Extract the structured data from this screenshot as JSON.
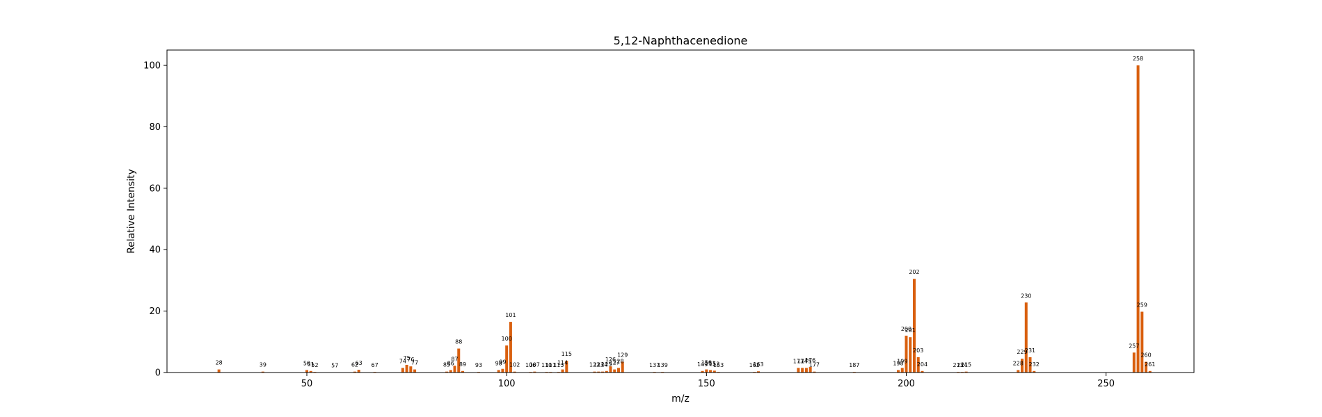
{
  "chart_data": {
    "type": "bar",
    "title": "5,12-Naphthacenedione",
    "xlabel": "m/z",
    "ylabel": "Relative Intensity",
    "xlim": [
      15,
      272
    ],
    "ylim": [
      0,
      105
    ],
    "xticks": [
      50,
      100,
      150,
      200,
      250
    ],
    "yticks": [
      0,
      20,
      40,
      60,
      80,
      100
    ],
    "bar_color": "#d95f0e",
    "grid": false,
    "legend": "none",
    "peaks": [
      {
        "x": 28,
        "y": 1.0
      },
      {
        "x": 39,
        "y": 0.3
      },
      {
        "x": 50,
        "y": 0.8
      },
      {
        "x": 51,
        "y": 0.5
      },
      {
        "x": 52,
        "y": 0.2
      },
      {
        "x": 57,
        "y": 0.1
      },
      {
        "x": 62,
        "y": 0.3
      },
      {
        "x": 63,
        "y": 0.9
      },
      {
        "x": 67,
        "y": 0.2
      },
      {
        "x": 74,
        "y": 1.5
      },
      {
        "x": 75,
        "y": 2.5
      },
      {
        "x": 76,
        "y": 2.0
      },
      {
        "x": 77,
        "y": 1.0
      },
      {
        "x": 85,
        "y": 0.3
      },
      {
        "x": 86,
        "y": 0.8
      },
      {
        "x": 87,
        "y": 2.2
      },
      {
        "x": 88,
        "y": 7.8
      },
      {
        "x": 89,
        "y": 0.5
      },
      {
        "x": 93,
        "y": 0.2
      },
      {
        "x": 98,
        "y": 0.8
      },
      {
        "x": 99,
        "y": 1.2
      },
      {
        "x": 100,
        "y": 8.8
      },
      {
        "x": 101,
        "y": 16.5
      },
      {
        "x": 102,
        "y": 0.3
      },
      {
        "x": 106,
        "y": 0.2
      },
      {
        "x": 107,
        "y": 0.3
      },
      {
        "x": 110,
        "y": 0.2
      },
      {
        "x": 111,
        "y": 0.2
      },
      {
        "x": 113,
        "y": 0.2
      },
      {
        "x": 114,
        "y": 1.0
      },
      {
        "x": 115,
        "y": 3.8
      },
      {
        "x": 122,
        "y": 0.3
      },
      {
        "x": 123,
        "y": 0.3
      },
      {
        "x": 124,
        "y": 0.3
      },
      {
        "x": 125,
        "y": 0.5
      },
      {
        "x": 126,
        "y": 2.0
      },
      {
        "x": 127,
        "y": 1.0
      },
      {
        "x": 128,
        "y": 1.5
      },
      {
        "x": 129,
        "y": 3.5
      },
      {
        "x": 137,
        "y": 0.2
      },
      {
        "x": 139,
        "y": 0.2
      },
      {
        "x": 149,
        "y": 0.5
      },
      {
        "x": 150,
        "y": 1.0
      },
      {
        "x": 151,
        "y": 0.8
      },
      {
        "x": 152,
        "y": 0.6
      },
      {
        "x": 153,
        "y": 0.2
      },
      {
        "x": 162,
        "y": 0.2
      },
      {
        "x": 163,
        "y": 0.4
      },
      {
        "x": 173,
        "y": 1.5
      },
      {
        "x": 174,
        "y": 1.5
      },
      {
        "x": 175,
        "y": 1.5
      },
      {
        "x": 176,
        "y": 1.8
      },
      {
        "x": 177,
        "y": 0.3
      },
      {
        "x": 187,
        "y": 0.2
      },
      {
        "x": 198,
        "y": 0.8
      },
      {
        "x": 199,
        "y": 1.5
      },
      {
        "x": 200,
        "y": 12.0
      },
      {
        "x": 201,
        "y": 11.5
      },
      {
        "x": 202,
        "y": 30.5
      },
      {
        "x": 203,
        "y": 5.0
      },
      {
        "x": 204,
        "y": 0.5
      },
      {
        "x": 213,
        "y": 0.2
      },
      {
        "x": 214,
        "y": 0.2
      },
      {
        "x": 215,
        "y": 0.3
      },
      {
        "x": 228,
        "y": 0.8
      },
      {
        "x": 229,
        "y": 4.5
      },
      {
        "x": 230,
        "y": 22.8
      },
      {
        "x": 231,
        "y": 5.0
      },
      {
        "x": 232,
        "y": 0.5
      },
      {
        "x": 257,
        "y": 6.5
      },
      {
        "x": 258,
        "y": 100.0
      },
      {
        "x": 259,
        "y": 19.8
      },
      {
        "x": 260,
        "y": 3.5
      },
      {
        "x": 261,
        "y": 0.5
      }
    ]
  }
}
